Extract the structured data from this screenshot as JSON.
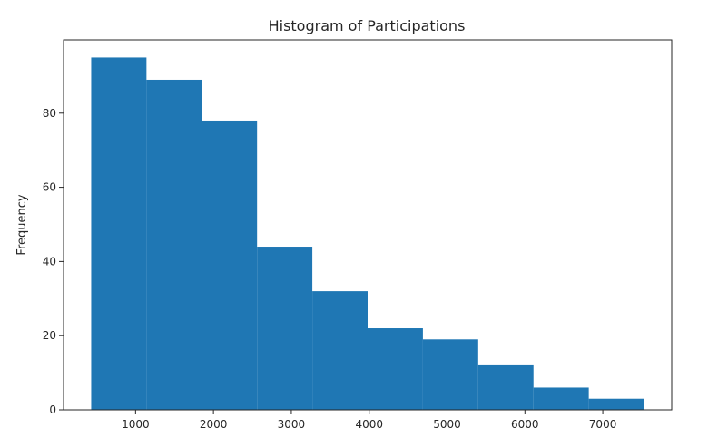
{
  "chart_data": {
    "type": "bar",
    "title": "Histogram of Participations",
    "xlabel": "",
    "ylabel": "Frequency",
    "bins": [
      {
        "x0": 430,
        "x1": 1140,
        "count": 95
      },
      {
        "x0": 1140,
        "x1": 1850,
        "count": 89
      },
      {
        "x0": 1850,
        "x1": 2560,
        "count": 78
      },
      {
        "x0": 2560,
        "x1": 3270,
        "count": 44
      },
      {
        "x0": 3270,
        "x1": 3980,
        "count": 32
      },
      {
        "x0": 3980,
        "x1": 4690,
        "count": 22
      },
      {
        "x0": 4690,
        "x1": 5400,
        "count": 19
      },
      {
        "x0": 5400,
        "x1": 6110,
        "count": 12
      },
      {
        "x0": 6110,
        "x1": 6820,
        "count": 6
      },
      {
        "x0": 6820,
        "x1": 7530,
        "count": 3
      }
    ],
    "xlim": [
      75,
      7885
    ],
    "ylim": [
      0,
      99.75
    ],
    "xticks": [
      1000,
      2000,
      3000,
      4000,
      5000,
      6000,
      7000
    ],
    "yticks": [
      0,
      20,
      40,
      60,
      80
    ],
    "colors": {
      "bar": "#1f77b4",
      "axis": "#262626",
      "background": "#ffffff"
    },
    "grid": false,
    "legend": "none"
  }
}
